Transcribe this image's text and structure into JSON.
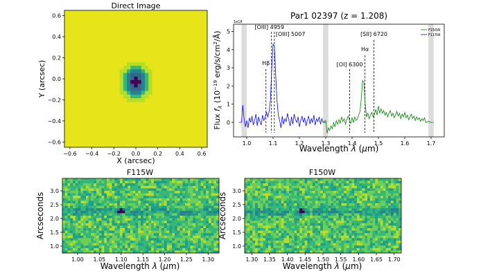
{
  "chart_data": [
    {
      "type": "heatmap",
      "title": "Direct Image",
      "xlabel": "X (arcsec)",
      "ylabel": "Y (arcsec)",
      "xlim": [
        -0.65,
        0.65
      ],
      "ylim": [
        -0.65,
        0.65
      ],
      "xticks": [
        "−0.6",
        "−0.4",
        "−0.2",
        "0.0",
        "0.2",
        "0.4",
        "0.6"
      ],
      "xtick_values": [
        -0.6,
        -0.4,
        -0.2,
        0.0,
        0.2,
        0.4,
        0.6
      ],
      "yticks": [
        "−0.6",
        "−0.4",
        "−0.2",
        "0.0",
        "0.2",
        "0.4",
        "0.6"
      ],
      "ytick_values": [
        -0.6,
        -0.4,
        -0.2,
        0.0,
        0.2,
        0.4,
        0.6
      ],
      "source_center": [
        0.0,
        -0.03
      ],
      "background_color": "#e7e419",
      "colormap": [
        "#e7e419",
        "#b5de2b",
        "#35b779",
        "#26828e",
        "#31688e",
        "#440154"
      ]
    },
    {
      "type": "line",
      "title": "Par1 02397 (z = 1.208)",
      "xlabel": "Wavelength λ (μm)",
      "ylabel": "Flux f_λ (10⁻¹⁹ erg/s/cm²/Å)",
      "scale_note": "1e18",
      "xlim": [
        0.95,
        1.75
      ],
      "ylim": [
        -0.8,
        5.4
      ],
      "xticks": [
        "1.0",
        "1.1",
        "1.2",
        "1.3",
        "1.4",
        "1.5",
        "1.6",
        "1.7"
      ],
      "xtick_values": [
        1.0,
        1.1,
        1.2,
        1.3,
        1.4,
        1.5,
        1.6,
        1.7
      ],
      "yticks": [
        "0",
        "1",
        "2",
        "3",
        "4",
        "5"
      ],
      "ytick_values": [
        0,
        1,
        2,
        3,
        4,
        5
      ],
      "shaded_bands": [
        [
          0.98,
          1.0
        ],
        [
          1.29,
          1.31
        ],
        [
          1.69,
          1.71
        ]
      ],
      "emission_lines": [
        {
          "label": "Hβ",
          "x": 1.073
        },
        {
          "label": "[OIII] 4959",
          "x": 1.094
        },
        {
          "label": "[OIII] 5007",
          "x": 1.105
        },
        {
          "label": "[OI] 6300",
          "x": 1.391
        },
        {
          "label": "Hα",
          "x": 1.449
        },
        {
          "label": "[SII] 6720",
          "x": 1.483
        }
      ],
      "legend": {
        "position": "top-right",
        "entries": [
          "F150W",
          "F115W"
        ]
      },
      "series": [
        {
          "name": "F115W",
          "color": "#0000ff",
          "points": [
            [
              0.97,
              0.0
            ],
            [
              0.98,
              0.0
            ],
            [
              0.985,
              0.95
            ],
            [
              0.99,
              0.2
            ],
            [
              0.995,
              -0.25
            ],
            [
              1.0,
              0.1
            ],
            [
              1.005,
              -0.3
            ],
            [
              1.01,
              0.25
            ],
            [
              1.015,
              0.0
            ],
            [
              1.02,
              0.35
            ],
            [
              1.025,
              -0.15
            ],
            [
              1.03,
              0.1
            ],
            [
              1.035,
              0.45
            ],
            [
              1.04,
              -0.2
            ],
            [
              1.045,
              0.3
            ],
            [
              1.05,
              0.05
            ],
            [
              1.055,
              -0.15
            ],
            [
              1.06,
              0.4
            ],
            [
              1.065,
              0.1
            ],
            [
              1.07,
              0.3
            ],
            [
              1.075,
              0.55
            ],
            [
              1.08,
              0.3
            ],
            [
              1.085,
              0.6
            ],
            [
              1.09,
              1.2
            ],
            [
              1.095,
              3.0
            ],
            [
              1.1,
              4.3
            ],
            [
              1.105,
              4.2
            ],
            [
              1.11,
              2.6
            ],
            [
              1.115,
              1.2
            ],
            [
              1.12,
              0.4
            ],
            [
              1.125,
              0.1
            ],
            [
              1.13,
              -0.3
            ],
            [
              1.135,
              0.35
            ],
            [
              1.14,
              -0.1
            ],
            [
              1.145,
              0.2
            ],
            [
              1.15,
              0.05
            ],
            [
              1.155,
              0.5
            ],
            [
              1.16,
              0.1
            ],
            [
              1.165,
              -0.2
            ],
            [
              1.17,
              0.3
            ],
            [
              1.175,
              -0.1
            ],
            [
              1.18,
              0.45
            ],
            [
              1.185,
              0.15
            ],
            [
              1.19,
              0.0
            ],
            [
              1.195,
              0.3
            ],
            [
              1.2,
              -0.25
            ],
            [
              1.205,
              0.1
            ],
            [
              1.21,
              0.35
            ],
            [
              1.215,
              0.0
            ],
            [
              1.22,
              0.25
            ],
            [
              1.225,
              -0.2
            ],
            [
              1.23,
              0.1
            ],
            [
              1.235,
              0.35
            ],
            [
              1.24,
              -0.1
            ],
            [
              1.245,
              0.2
            ],
            [
              1.25,
              0.0
            ],
            [
              1.255,
              0.4
            ],
            [
              1.26,
              -0.15
            ],
            [
              1.265,
              0.2
            ],
            [
              1.27,
              0.05
            ],
            [
              1.275,
              0.3
            ],
            [
              1.28,
              -0.1
            ],
            [
              1.285,
              0.2
            ],
            [
              1.29,
              0.0
            ],
            [
              1.3,
              0.0
            ]
          ]
        },
        {
          "name": "F150W",
          "color": "#008000",
          "points": [
            [
              1.29,
              0.0
            ],
            [
              1.3,
              0.1
            ],
            [
              1.305,
              -0.6
            ],
            [
              1.31,
              -0.3
            ],
            [
              1.315,
              -0.45
            ],
            [
              1.32,
              -0.2
            ],
            [
              1.325,
              -0.35
            ],
            [
              1.33,
              0.0
            ],
            [
              1.335,
              -0.25
            ],
            [
              1.34,
              0.1
            ],
            [
              1.345,
              -0.1
            ],
            [
              1.35,
              0.15
            ],
            [
              1.355,
              -0.05
            ],
            [
              1.36,
              0.3
            ],
            [
              1.365,
              0.05
            ],
            [
              1.37,
              0.2
            ],
            [
              1.375,
              -0.1
            ],
            [
              1.38,
              0.15
            ],
            [
              1.385,
              0.35
            ],
            [
              1.39,
              0.1
            ],
            [
              1.395,
              -0.05
            ],
            [
              1.4,
              0.25
            ],
            [
              1.405,
              0.0
            ],
            [
              1.41,
              0.3
            ],
            [
              1.415,
              0.1
            ],
            [
              1.42,
              0.2
            ],
            [
              1.425,
              0.4
            ],
            [
              1.43,
              0.6
            ],
            [
              1.435,
              1.3
            ],
            [
              1.44,
              2.3
            ],
            [
              1.445,
              2.2
            ],
            [
              1.45,
              1.0
            ],
            [
              1.455,
              0.3
            ],
            [
              1.46,
              0.5
            ],
            [
              1.465,
              0.2
            ],
            [
              1.47,
              0.4
            ],
            [
              1.475,
              0.55
            ],
            [
              1.48,
              0.3
            ],
            [
              1.485,
              0.45
            ],
            [
              1.49,
              0.7
            ],
            [
              1.495,
              0.4
            ],
            [
              1.5,
              0.9
            ],
            [
              1.505,
              0.5
            ],
            [
              1.51,
              0.75
            ],
            [
              1.515,
              0.5
            ],
            [
              1.52,
              0.65
            ],
            [
              1.525,
              0.4
            ],
            [
              1.53,
              0.55
            ],
            [
              1.535,
              0.3
            ],
            [
              1.54,
              0.5
            ],
            [
              1.545,
              0.65
            ],
            [
              1.55,
              0.35
            ],
            [
              1.555,
              0.5
            ],
            [
              1.56,
              0.25
            ],
            [
              1.565,
              0.4
            ],
            [
              1.57,
              0.6
            ],
            [
              1.575,
              0.35
            ],
            [
              1.58,
              0.5
            ],
            [
              1.585,
              0.2
            ],
            [
              1.59,
              0.45
            ],
            [
              1.595,
              0.3
            ],
            [
              1.6,
              0.55
            ],
            [
              1.605,
              0.25
            ],
            [
              1.61,
              0.4
            ],
            [
              1.615,
              0.15
            ],
            [
              1.62,
              0.3
            ],
            [
              1.625,
              0.45
            ],
            [
              1.63,
              0.2
            ],
            [
              1.635,
              0.35
            ],
            [
              1.64,
              0.1
            ],
            [
              1.645,
              0.3
            ],
            [
              1.65,
              0.15
            ],
            [
              1.655,
              0.25
            ],
            [
              1.66,
              0.05
            ],
            [
              1.665,
              0.2
            ],
            [
              1.67,
              0.1
            ],
            [
              1.675,
              0.25
            ],
            [
              1.68,
              0.0
            ],
            [
              1.69,
              0.05
            ],
            [
              1.7,
              0.0
            ],
            [
              1.71,
              0.0
            ]
          ]
        }
      ]
    },
    {
      "type": "heatmap",
      "title": "F115W",
      "xlabel": "Wavelength λ (μm)",
      "ylabel": "Arcseconds",
      "xlim": [
        0.965,
        1.325
      ],
      "ylim": [
        0.75,
        3.45
      ],
      "xticks": [
        "1.00",
        "1.05",
        "1.10",
        "1.15",
        "1.20",
        "1.25",
        "1.30"
      ],
      "xtick_values": [
        1.0,
        1.05,
        1.1,
        1.15,
        1.2,
        1.25,
        1.3
      ],
      "yticks": [
        "1.0",
        "1.5",
        "2.0",
        "2.5",
        "3.0"
      ],
      "ytick_values": [
        1.0,
        1.5,
        2.0,
        2.5,
        3.0
      ],
      "trace_center": 2.25,
      "source_position": [
        1.1,
        2.27
      ],
      "colormap": [
        "#fde725",
        "#b5de2b",
        "#6ece58",
        "#35b779",
        "#1f9e89",
        "#26828e",
        "#31688e",
        "#440154"
      ]
    },
    {
      "type": "heatmap",
      "title": "F150W",
      "xlabel": "Wavelength λ (μm)",
      "ylabel": "Arcseconds",
      "xlim": [
        1.28,
        1.72
      ],
      "ylim": [
        0.75,
        3.45
      ],
      "xticks": [
        "1.30",
        "1.35",
        "1.40",
        "1.45",
        "1.50",
        "1.55",
        "1.60",
        "1.65",
        "1.70"
      ],
      "xtick_values": [
        1.3,
        1.35,
        1.4,
        1.45,
        1.5,
        1.55,
        1.6,
        1.65,
        1.7
      ],
      "yticks": [
        "1.0",
        "1.5",
        "2.0",
        "2.5",
        "3.0"
      ],
      "ytick_values": [
        1.0,
        1.5,
        2.0,
        2.5,
        3.0
      ],
      "trace_center": 2.25,
      "source_position": [
        1.44,
        2.27
      ],
      "colormap": [
        "#fde725",
        "#b5de2b",
        "#6ece58",
        "#35b779",
        "#1f9e89",
        "#26828e",
        "#31688e",
        "#440154"
      ]
    }
  ]
}
